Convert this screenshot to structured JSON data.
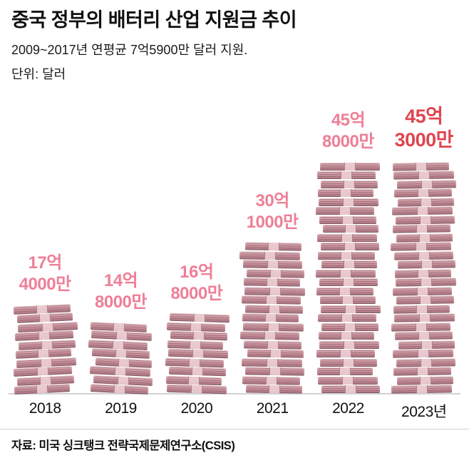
{
  "header": {
    "title": "중국 정부의 배터리 산업 지원금 추이",
    "subtitle": "2009~2017년 연평균 7억5900만 달러 지원.",
    "unit": "단위: 달러"
  },
  "chart_data": {
    "type": "bar",
    "title": "중국 정부의 배터리 산업 지원금 추이",
    "categories": [
      "2018",
      "2019",
      "2020",
      "2021",
      "2022",
      "2023년"
    ],
    "values": [
      17.4,
      14.8,
      16.8,
      30.1,
      45.8,
      45.3
    ],
    "value_unit": "억 달러",
    "labels": [
      [
        "17억",
        "4000만"
      ],
      [
        "14억",
        "8000만"
      ],
      [
        "16억",
        "8000만"
      ],
      [
        "30억",
        "1000만"
      ],
      [
        "45억",
        "8000만"
      ],
      [
        "45억",
        "3000만"
      ]
    ],
    "ylim": [
      0,
      50
    ],
    "grid": false,
    "legend": false,
    "bar_style": "money-stack-illustration",
    "label_color": "#ee7f96",
    "highlight_last": true,
    "highlight_color": "#e0444e"
  },
  "footer": {
    "source": "자료: 미국 싱크탱크 전략국제문제연구소(CSIS)"
  }
}
